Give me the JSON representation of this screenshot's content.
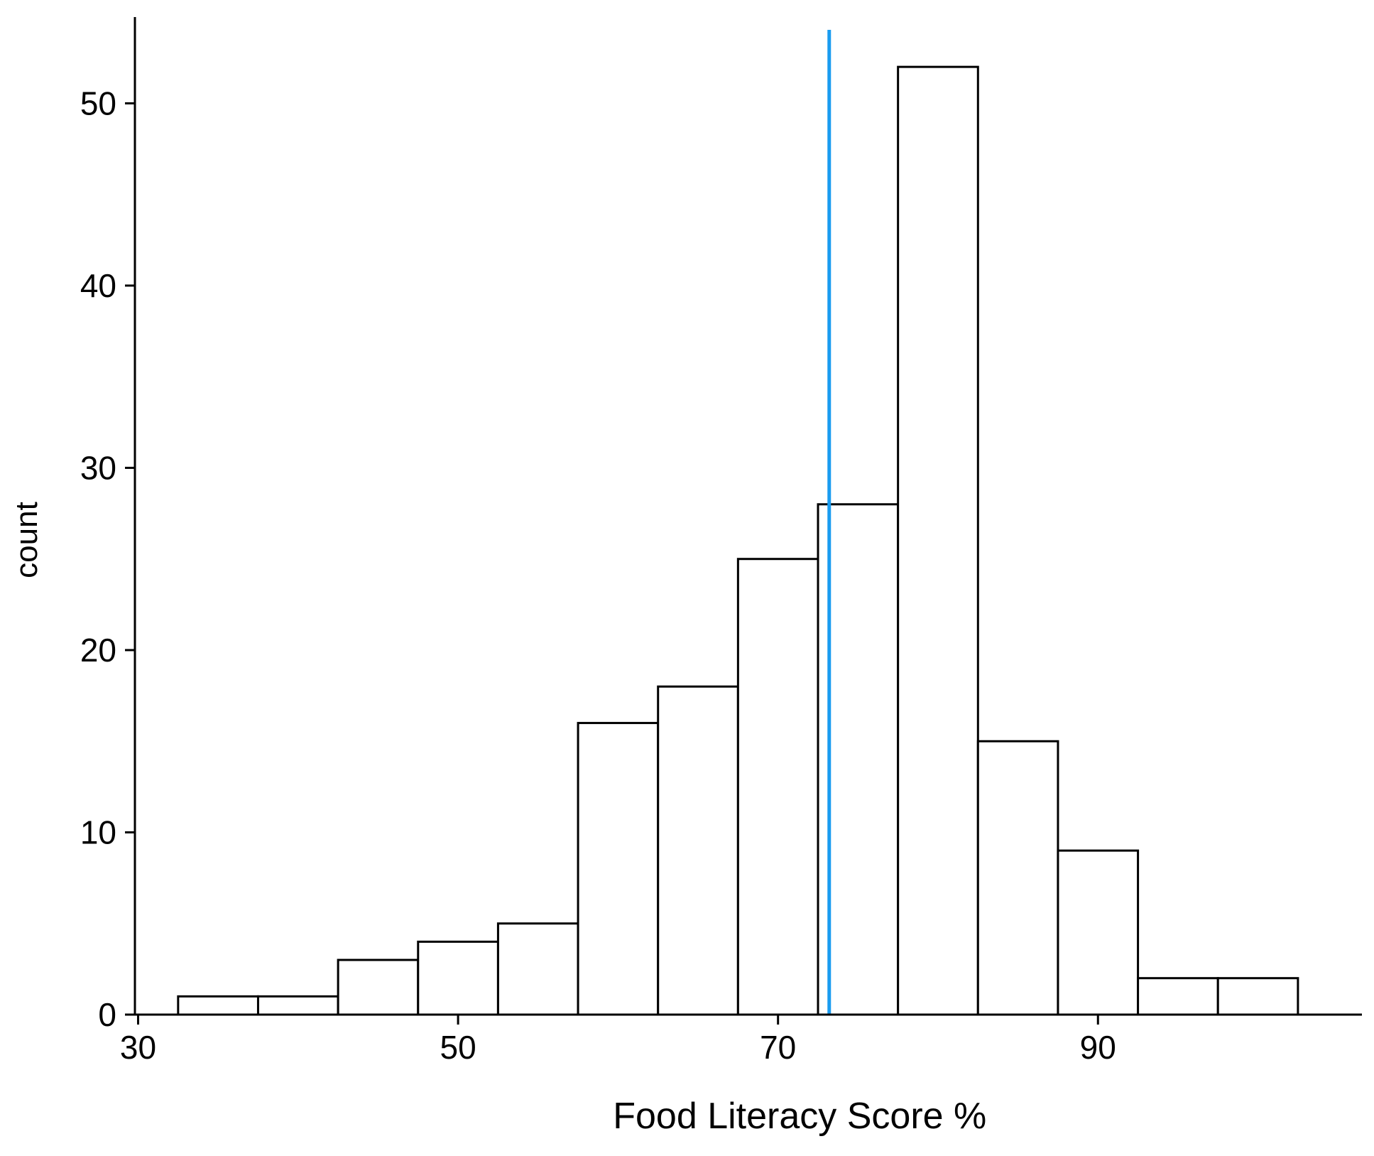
{
  "chart_data": {
    "type": "bar",
    "subtype": "histogram",
    "title": "",
    "xlabel": "Food Literacy Score %",
    "ylabel": "count",
    "bin_width": 5,
    "bins": [
      {
        "x_start": 32.5,
        "x_end": 37.5,
        "count": 1
      },
      {
        "x_start": 37.5,
        "x_end": 42.5,
        "count": 1
      },
      {
        "x_start": 42.5,
        "x_end": 47.5,
        "count": 3
      },
      {
        "x_start": 47.5,
        "x_end": 52.5,
        "count": 4
      },
      {
        "x_start": 52.5,
        "x_end": 57.5,
        "count": 5
      },
      {
        "x_start": 57.5,
        "x_end": 62.5,
        "count": 16
      },
      {
        "x_start": 62.5,
        "x_end": 67.5,
        "count": 18
      },
      {
        "x_start": 67.5,
        "x_end": 72.5,
        "count": 25
      },
      {
        "x_start": 72.5,
        "x_end": 77.5,
        "count": 28
      },
      {
        "x_start": 77.5,
        "x_end": 82.5,
        "count": 52
      },
      {
        "x_start": 82.5,
        "x_end": 87.5,
        "count": 15
      },
      {
        "x_start": 87.5,
        "x_end": 92.5,
        "count": 9
      },
      {
        "x_start": 92.5,
        "x_end": 97.5,
        "count": 2
      },
      {
        "x_start": 97.5,
        "x_end": 102.5,
        "count": 2
      }
    ],
    "reference_line": {
      "x": 73.2,
      "color": "#1a9cf0"
    },
    "xlim": [
      29.8,
      106.5
    ],
    "ylim": [
      0,
      54.5
    ],
    "x_ticks": [
      30,
      50,
      70,
      90
    ],
    "x_tick_labels": [
      "30",
      "50",
      "70",
      "90"
    ],
    "y_ticks": [
      0,
      10,
      20,
      30,
      40,
      50
    ],
    "y_tick_labels": [
      "0",
      "10",
      "20",
      "30",
      "40",
      "50"
    ],
    "grid": false,
    "legend": "none",
    "bar_fill": "#ffffff",
    "bar_edge": "#000000"
  }
}
